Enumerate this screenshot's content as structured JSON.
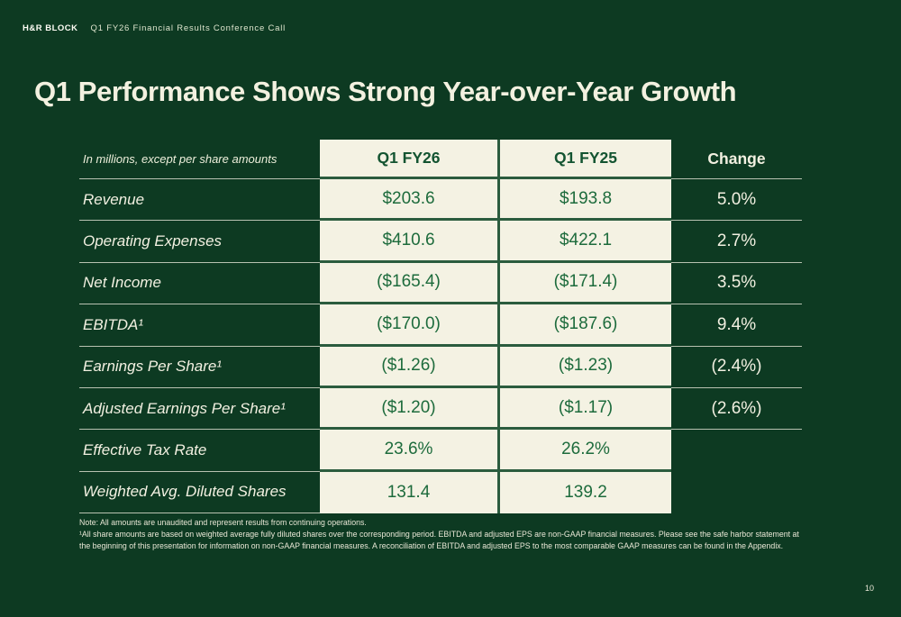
{
  "topbar": {
    "logo": "H&R BLOCK",
    "subtitle": "Q1 FY26 Financial Results Conference Call"
  },
  "title": "Q1 Performance Shows Strong Year-over-Year Growth",
  "table": {
    "units_note": "In millions, except per share amounts",
    "columns": [
      "",
      "Q1 FY26",
      "Q1 FY25",
      "Change"
    ],
    "rows": [
      {
        "label": "Revenue",
        "fy26": "$203.6",
        "fy25": "$193.8",
        "change": "5.0%"
      },
      {
        "label": "Operating Expenses",
        "fy26": "$410.6",
        "fy25": "$422.1",
        "change": "2.7%"
      },
      {
        "label": "Net Income",
        "fy26": "($165.4)",
        "fy25": "($171.4)",
        "change": "3.5%"
      },
      {
        "label": "EBITDA¹",
        "fy26": "($170.0)",
        "fy25": "($187.6)",
        "change": "9.4%"
      },
      {
        "label": "Earnings Per Share¹",
        "fy26": "($1.26)",
        "fy25": "($1.23)",
        "change": "(2.4%)"
      },
      {
        "label": "Adjusted Earnings Per Share¹",
        "fy26": "($1.20)",
        "fy25": "($1.17)",
        "change": "(2.6%)"
      },
      {
        "label": "Effective Tax Rate",
        "fy26": "23.6%",
        "fy25": "26.2%",
        "change": ""
      },
      {
        "label": "Weighted Avg. Diluted Shares",
        "fy26": "131.4",
        "fy25": "139.2",
        "change": ""
      }
    ]
  },
  "footnotes": {
    "note": "Note: All amounts are unaudited and represent results from continuing operations.",
    "footnote1": "¹All share amounts are based on weighted average fully diluted shares over the corresponding period. EBITDA and adjusted EPS are non-GAAP financial measures. Please see the safe harbor statement at the beginning of this presentation for information on non-GAAP financial measures. A reconciliation of EBITDA and adjusted EPS to the most comparable GAAP measures can be found in the Appendix."
  },
  "page_number": "10",
  "colors": {
    "background": "#0d3a22",
    "cream": "#f4f2e3",
    "value_green": "#1d6b3c",
    "header_green": "#135431",
    "line_light": "#e9e7d6",
    "row_border_green": "#2b5c3e"
  }
}
